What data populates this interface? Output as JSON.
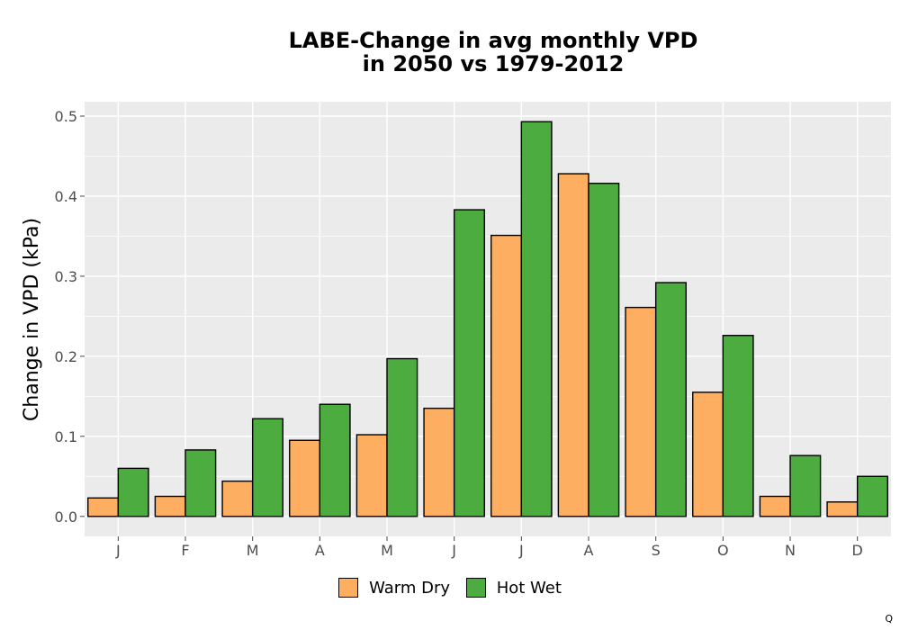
{
  "title_line1": "LABE-Change in avg monthly VPD",
  "title_line2": "in 2050 vs 1979-2012",
  "corner_mark": "Q",
  "legend": {
    "warm_dry": "Warm Dry",
    "hot_wet": "Hot Wet"
  },
  "colors": {
    "warm_dry": "#FDAE61",
    "hot_wet": "#4DAC3F",
    "panel": "#EBEBEB",
    "grid": "#FFFFFF"
  },
  "chart_data": {
    "type": "bar",
    "title": "LABE-Change in avg monthly VPD in 2050 vs 1979-2012",
    "xlabel": "",
    "ylabel": "Change in VPD (kPa)",
    "categories": [
      "J",
      "F",
      "M",
      "A",
      "M",
      "J",
      "J",
      "A",
      "S",
      "O",
      "N",
      "D"
    ],
    "series": [
      {
        "name": "Warm Dry",
        "values": [
          0.023,
          0.025,
          0.044,
          0.095,
          0.102,
          0.135,
          0.351,
          0.428,
          0.261,
          0.155,
          0.025,
          0.018
        ]
      },
      {
        "name": "Hot Wet",
        "values": [
          0.06,
          0.083,
          0.122,
          0.14,
          0.197,
          0.383,
          0.493,
          0.416,
          0.292,
          0.226,
          0.076,
          0.05
        ]
      }
    ],
    "ylim": [
      -0.025,
      0.518
    ],
    "yticks": [
      "0.0",
      "0.1",
      "0.2",
      "0.3",
      "0.4",
      "0.5"
    ],
    "grid": true,
    "legend_position": "bottom"
  }
}
